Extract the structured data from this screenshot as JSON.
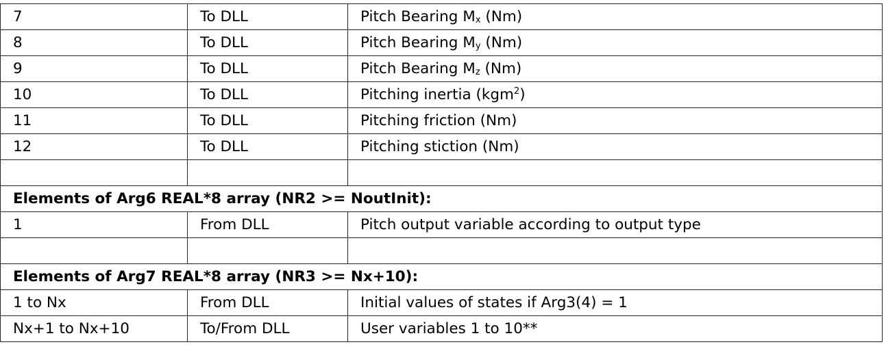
{
  "rows_top": [
    {
      "index": "7",
      "direction": "To DLL",
      "pre": "Pitch Bearing M",
      "sub": "x",
      "post": " (Nm)"
    },
    {
      "index": "8",
      "direction": "To DLL",
      "pre": "Pitch Bearing M",
      "sub": "y",
      "post": " (Nm)"
    },
    {
      "index": "9",
      "direction": "To DLL",
      "pre": "Pitch Bearing M",
      "sub": "z",
      "post": " (Nm)"
    },
    {
      "index": "10",
      "direction": "To DLL",
      "pre": "Pitching inertia (kgm",
      "sup": "2",
      "post": ")"
    },
    {
      "index": "11",
      "direction": "To DLL",
      "description": "Pitching friction (Nm)"
    },
    {
      "index": "12",
      "direction": "To DLL",
      "description": "Pitching stiction (Nm)"
    }
  ],
  "section_arg6": {
    "heading": "Elements of Arg6 REAL*8 array (NR2 >= NoutInit):",
    "rows": [
      {
        "index": "1",
        "direction": "From DLL",
        "description": "Pitch output variable according to output type"
      }
    ]
  },
  "section_arg7": {
    "heading": "Elements of Arg7 REAL*8 array (NR3 >= Nx+10):",
    "rows": [
      {
        "index": "1 to Nx",
        "direction": "From DLL",
        "description": "Initial values of states if Arg3(4) = 1"
      },
      {
        "index": "Nx+1 to Nx+10",
        "direction": "To/From DLL",
        "description": "User variables 1 to 10**"
      }
    ]
  }
}
